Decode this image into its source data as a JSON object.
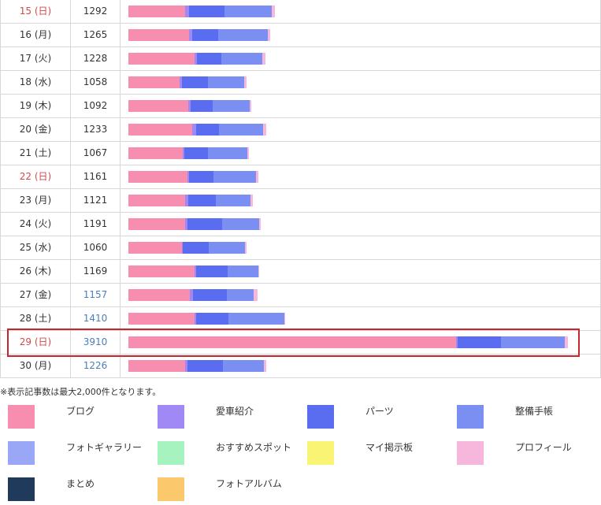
{
  "rows": [
    {
      "day": "15 (日)",
      "count": "1292",
      "holiday": true,
      "link": false,
      "segments": [
        {
          "color": "#f78daf",
          "value": 72
        },
        {
          "color": "#a088f5",
          "value": 5
        },
        {
          "color": "#5a6cf0",
          "value": 45
        },
        {
          "color": "#7b8ef2",
          "value": 60
        },
        {
          "color": "#f7b7dd",
          "value": 4
        }
      ]
    },
    {
      "day": "16 (月)",
      "count": "1265",
      "holiday": false,
      "link": false,
      "segments": [
        {
          "color": "#f78daf",
          "value": 77
        },
        {
          "color": "#a088f5",
          "value": 4
        },
        {
          "color": "#5a6cf0",
          "value": 33
        },
        {
          "color": "#7b8ef2",
          "value": 63
        },
        {
          "color": "#f7b7dd",
          "value": 3
        }
      ]
    },
    {
      "day": "17 (火)",
      "count": "1228",
      "holiday": false,
      "link": false,
      "segments": [
        {
          "color": "#f78daf",
          "value": 84
        },
        {
          "color": "#a088f5",
          "value": 3
        },
        {
          "color": "#5a6cf0",
          "value": 31
        },
        {
          "color": "#7b8ef2",
          "value": 52
        },
        {
          "color": "#f7b7dd",
          "value": 4
        }
      ]
    },
    {
      "day": "18 (水)",
      "count": "1058",
      "holiday": false,
      "link": false,
      "segments": [
        {
          "color": "#f78daf",
          "value": 65
        },
        {
          "color": "#a088f5",
          "value": 3
        },
        {
          "color": "#5a6cf0",
          "value": 33
        },
        {
          "color": "#7b8ef2",
          "value": 46
        },
        {
          "color": "#f7b7dd",
          "value": 3
        }
      ]
    },
    {
      "day": "19 (木)",
      "count": "1092",
      "holiday": false,
      "link": false,
      "segments": [
        {
          "color": "#f78daf",
          "value": 76
        },
        {
          "color": "#a088f5",
          "value": 3
        },
        {
          "color": "#5a6cf0",
          "value": 28
        },
        {
          "color": "#7b8ef2",
          "value": 47
        },
        {
          "color": "#f7b7dd",
          "value": 2
        }
      ]
    },
    {
      "day": "20 (金)",
      "count": "1233",
      "holiday": false,
      "link": false,
      "segments": [
        {
          "color": "#f78daf",
          "value": 81
        },
        {
          "color": "#a088f5",
          "value": 5
        },
        {
          "color": "#5a6cf0",
          "value": 29
        },
        {
          "color": "#7b8ef2",
          "value": 56
        },
        {
          "color": "#f7b7dd",
          "value": 4
        }
      ]
    },
    {
      "day": "21 (土)",
      "count": "1067",
      "holiday": false,
      "link": false,
      "segments": [
        {
          "color": "#f78daf",
          "value": 69
        },
        {
          "color": "#a088f5",
          "value": 2
        },
        {
          "color": "#5a6cf0",
          "value": 30
        },
        {
          "color": "#7b8ef2",
          "value": 50
        },
        {
          "color": "#f7b7dd",
          "value": 2
        }
      ]
    },
    {
      "day": "22 (日)",
      "count": "1161",
      "holiday": true,
      "link": false,
      "segments": [
        {
          "color": "#f78daf",
          "value": 75
        },
        {
          "color": "#a088f5",
          "value": 2
        },
        {
          "color": "#5a6cf0",
          "value": 31
        },
        {
          "color": "#7b8ef2",
          "value": 54
        },
        {
          "color": "#f7b7dd",
          "value": 3
        }
      ]
    },
    {
      "day": "23 (月)",
      "count": "1121",
      "holiday": false,
      "link": false,
      "segments": [
        {
          "color": "#f78daf",
          "value": 72
        },
        {
          "color": "#a088f5",
          "value": 4
        },
        {
          "color": "#5a6cf0",
          "value": 35
        },
        {
          "color": "#7b8ef2",
          "value": 44
        },
        {
          "color": "#f7b7dd",
          "value": 3
        }
      ]
    },
    {
      "day": "24 (火)",
      "count": "1191",
      "holiday": false,
      "link": false,
      "segments": [
        {
          "color": "#f78daf",
          "value": 72
        },
        {
          "color": "#a088f5",
          "value": 3
        },
        {
          "color": "#5a6cf0",
          "value": 44
        },
        {
          "color": "#7b8ef2",
          "value": 47
        },
        {
          "color": "#f7b7dd",
          "value": 2
        }
      ]
    },
    {
      "day": "25 (水)",
      "count": "1060",
      "holiday": false,
      "link": false,
      "segments": [
        {
          "color": "#f78daf",
          "value": 68
        },
        {
          "color": "#a088f5",
          "value": 1
        },
        {
          "color": "#5a6cf0",
          "value": 33
        },
        {
          "color": "#7b8ef2",
          "value": 46
        },
        {
          "color": "#f7b7dd",
          "value": 2
        }
      ]
    },
    {
      "day": "26 (木)",
      "count": "1169",
      "holiday": false,
      "link": false,
      "segments": [
        {
          "color": "#f78daf",
          "value": 84
        },
        {
          "color": "#a088f5",
          "value": 2
        },
        {
          "color": "#5a6cf0",
          "value": 40
        },
        {
          "color": "#7b8ef2",
          "value": 39
        },
        {
          "color": "#f7b7dd",
          "value": 1
        }
      ]
    },
    {
      "day": "27 (金)",
      "count": "1157",
      "holiday": false,
      "link": true,
      "segments": [
        {
          "color": "#f78daf",
          "value": 78
        },
        {
          "color": "#a088f5",
          "value": 4
        },
        {
          "color": "#5a6cf0",
          "value": 43
        },
        {
          "color": "#7b8ef2",
          "value": 34
        },
        {
          "color": "#f7b7dd",
          "value": 5
        }
      ]
    },
    {
      "day": "28 (土)",
      "count": "1410",
      "holiday": false,
      "link": true,
      "segments": [
        {
          "color": "#f78daf",
          "value": 84
        },
        {
          "color": "#a088f5",
          "value": 2
        },
        {
          "color": "#5a6cf0",
          "value": 41
        },
        {
          "color": "#7b8ef2",
          "value": 71
        },
        {
          "color": "#f7b7dd",
          "value": 1
        }
      ]
    },
    {
      "day": "29 (日)",
      "count": "3910",
      "holiday": true,
      "link": true,
      "segments": [
        {
          "color": "#f78daf",
          "value": 416
        },
        {
          "color": "#a088f5",
          "value": 2
        },
        {
          "color": "#5a6cf0",
          "value": 55
        },
        {
          "color": "#7b8ef2",
          "value": 81
        },
        {
          "color": "#f7b7dd",
          "value": 4
        }
      ]
    },
    {
      "day": "30 (月)",
      "count": "1226",
      "holiday": false,
      "link": true,
      "segments": [
        {
          "color": "#f78daf",
          "value": 72
        },
        {
          "color": "#a088f5",
          "value": 3
        },
        {
          "color": "#5a6cf0",
          "value": 45
        },
        {
          "color": "#7b8ef2",
          "value": 52
        },
        {
          "color": "#f7b7dd",
          "value": 3
        }
      ]
    }
  ],
  "highlight_day": "29 (日)",
  "note": "※表示記事数は最大2,000件となります。",
  "legend": [
    {
      "label": "ブログ",
      "color": "#f78daf"
    },
    {
      "label": "愛車紹介",
      "color": "#a088f5"
    },
    {
      "label": "パーツ",
      "color": "#5a6cf0"
    },
    {
      "label": "整備手帳",
      "color": "#7b8ef2"
    },
    {
      "label": "フォトギャラリー",
      "color": "#9aa6f6"
    },
    {
      "label": "おすすめスポット",
      "color": "#a6f3c0"
    },
    {
      "label": "マイ掲示板",
      "color": "#faf475"
    },
    {
      "label": "プロフィール",
      "color": "#f7b7dd"
    },
    {
      "label": "まとめ",
      "color": "#1f3a5a"
    },
    {
      "label": "フォトアルバム",
      "color": "#fbc96b"
    }
  ],
  "colors": {
    "holiday": "#d24a4a",
    "link": "#4a7fb8",
    "highlight_border": "#c8262d"
  }
}
